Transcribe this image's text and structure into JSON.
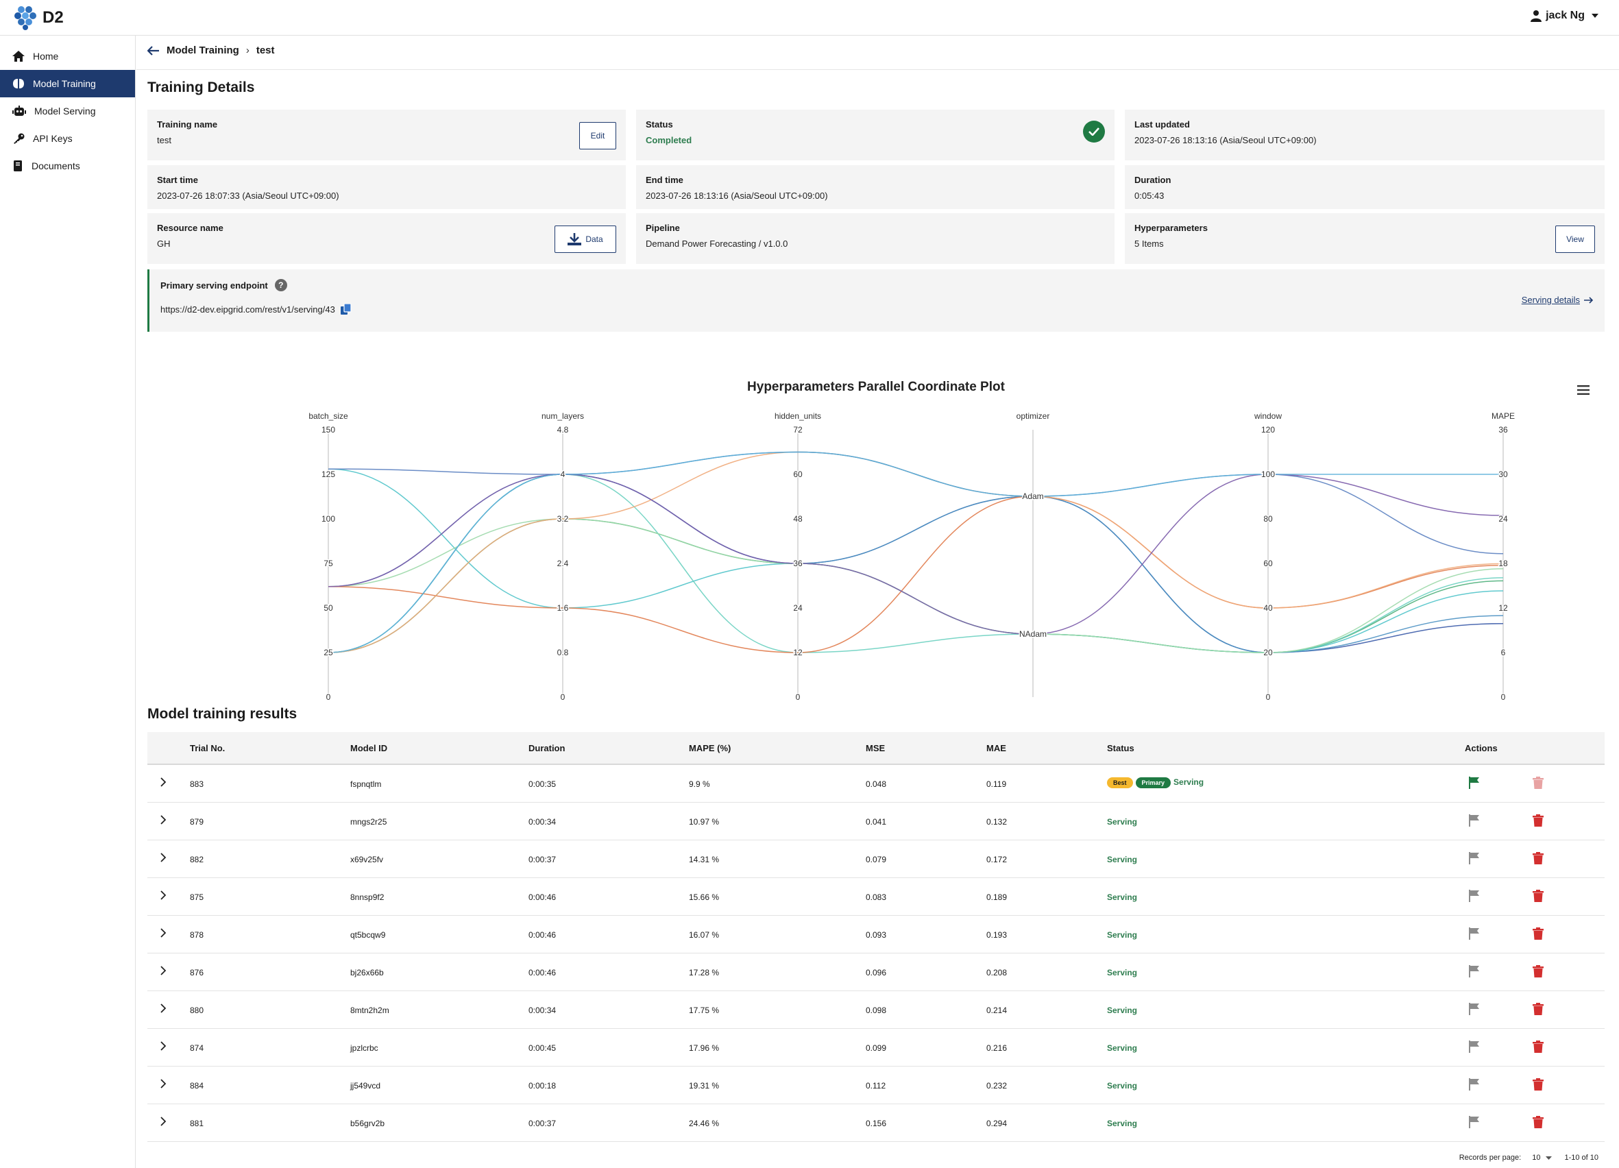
{
  "app": {
    "name": "D2",
    "user": "jack Ng"
  },
  "sidebar": {
    "items": [
      {
        "label": "Home",
        "icon": "home-icon",
        "active": false
      },
      {
        "label": "Model Training",
        "icon": "brain-icon",
        "active": true
      },
      {
        "label": "Model Serving",
        "icon": "robot-icon",
        "active": false
      },
      {
        "label": "API Keys",
        "icon": "key-icon",
        "active": false
      },
      {
        "label": "Documents",
        "icon": "book-icon",
        "active": false
      }
    ]
  },
  "breadcrumb": {
    "parent": "Model Training",
    "current": "test"
  },
  "details": {
    "title": "Training Details",
    "training_name": {
      "label": "Training name",
      "value": "test",
      "button": "Edit"
    },
    "status": {
      "label": "Status",
      "value": "Completed"
    },
    "last_updated": {
      "label": "Last updated",
      "value": "2023-07-26 18:13:16 (Asia/Seoul UTC+09:00)"
    },
    "start_time": {
      "label": "Start time",
      "value": "2023-07-26 18:07:33 (Asia/Seoul UTC+09:00)"
    },
    "end_time": {
      "label": "End time",
      "value": "2023-07-26 18:13:16 (Asia/Seoul UTC+09:00)"
    },
    "duration": {
      "label": "Duration",
      "value": "0:05:43"
    },
    "resource": {
      "label": "Resource name",
      "value": "GH",
      "button": "Data"
    },
    "pipeline": {
      "label": "Pipeline",
      "value": "Demand Power Forecasting / v1.0.0"
    },
    "hyperparameters": {
      "label": "Hyperparameters",
      "value": "5 Items",
      "button": "View"
    }
  },
  "endpoint": {
    "label": "Primary serving endpoint",
    "help": "?",
    "url": "https://d2-dev.eipgrid.com/rest/v1/serving/43",
    "details_link": "Serving details"
  },
  "chart_data": {
    "type": "parallel_coordinates",
    "title": "Hyperparameters Parallel Coordinate Plot",
    "axes": [
      {
        "name": "batch_size",
        "range": [
          0,
          150
        ],
        "ticks": [
          "150",
          "125",
          "100",
          "75",
          "50",
          "25",
          "0"
        ]
      },
      {
        "name": "num_layers",
        "range": [
          0,
          4.8
        ],
        "ticks": [
          "4.8",
          "4",
          "3.2",
          "2.4",
          "1.6",
          "0.8",
          "0"
        ]
      },
      {
        "name": "hidden_units",
        "range": [
          0,
          72
        ],
        "ticks": [
          "72",
          "60",
          "48",
          "36",
          "24",
          "12",
          "0"
        ]
      },
      {
        "name": "optimizer",
        "categories": [
          "NAdam",
          "Adam"
        ]
      },
      {
        "name": "window",
        "range": [
          0,
          120
        ],
        "ticks": [
          "120",
          "100",
          "80",
          "60",
          "40",
          "20",
          "0"
        ]
      },
      {
        "name": "MAPE",
        "range": [
          0,
          36
        ],
        "ticks": [
          "36",
          "30",
          "24",
          "18",
          "12",
          "6",
          "0"
        ]
      }
    ],
    "lines": [
      {
        "values": [
          25,
          4,
          36,
          "Adam",
          20,
          9.9
        ],
        "color": "#3b5ba9"
      },
      {
        "values": [
          62,
          4,
          36,
          "Adam",
          20,
          10.97
        ],
        "color": "#4a90c2"
      },
      {
        "values": [
          128,
          1.6,
          36,
          "NAdam",
          20,
          14.31
        ],
        "color": "#4fc3c9"
      },
      {
        "values": [
          25,
          3.2,
          36,
          "NAdam",
          20,
          15.66
        ],
        "color": "#4caf7a"
      },
      {
        "values": [
          25,
          4,
          12,
          "NAdam",
          20,
          16.07
        ],
        "color": "#6ad0c0"
      },
      {
        "values": [
          62,
          3.2,
          36,
          "NAdam",
          20,
          17.28
        ],
        "color": "#9bd8a8"
      },
      {
        "values": [
          62,
          1.6,
          12,
          "Adam",
          40,
          17.75
        ],
        "color": "#e07a4a"
      },
      {
        "values": [
          25,
          3.2,
          66,
          "Adam",
          40,
          17.96
        ],
        "color": "#f0a878"
      },
      {
        "values": [
          128,
          4,
          66,
          "Adam",
          100,
          19.31
        ],
        "color": "#5a7fc0"
      },
      {
        "values": [
          62,
          4,
          36,
          "NAdam",
          100,
          24.46
        ],
        "color": "#7a5aa8"
      },
      {
        "values": [
          25,
          4,
          66,
          "Adam",
          100,
          30
        ],
        "color": "#5bb0d8"
      }
    ]
  },
  "results": {
    "title": "Model training results",
    "columns": [
      "Trial No.",
      "Model ID",
      "Duration",
      "MAPE (%)",
      "MSE",
      "MAE",
      "Status",
      "Actions"
    ],
    "badges": {
      "best": "Best",
      "primary": "Primary"
    },
    "rows": [
      {
        "trial": "883",
        "model": "fspnqtlm",
        "duration": "0:00:35",
        "mape": "9.9 %",
        "mse": "0.048",
        "mae": "0.119",
        "status": "Serving",
        "best": true,
        "primary": true
      },
      {
        "trial": "879",
        "model": "mngs2r25",
        "duration": "0:00:34",
        "mape": "10.97 %",
        "mse": "0.041",
        "mae": "0.132",
        "status": "Serving"
      },
      {
        "trial": "882",
        "model": "x69v25fv",
        "duration": "0:00:37",
        "mape": "14.31 %",
        "mse": "0.079",
        "mae": "0.172",
        "status": "Serving"
      },
      {
        "trial": "875",
        "model": "8nnsp9f2",
        "duration": "0:00:46",
        "mape": "15.66 %",
        "mse": "0.083",
        "mae": "0.189",
        "status": "Serving"
      },
      {
        "trial": "878",
        "model": "qt5bcqw9",
        "duration": "0:00:46",
        "mape": "16.07 %",
        "mse": "0.093",
        "mae": "0.193",
        "status": "Serving"
      },
      {
        "trial": "876",
        "model": "bj26x66b",
        "duration": "0:00:46",
        "mape": "17.28 %",
        "mse": "0.096",
        "mae": "0.208",
        "status": "Serving"
      },
      {
        "trial": "880",
        "model": "8mtn2h2m",
        "duration": "0:00:34",
        "mape": "17.75 %",
        "mse": "0.098",
        "mae": "0.214",
        "status": "Serving"
      },
      {
        "trial": "874",
        "model": "jpzlcrbc",
        "duration": "0:00:45",
        "mape": "17.96 %",
        "mse": "0.099",
        "mae": "0.216",
        "status": "Serving"
      },
      {
        "trial": "884",
        "model": "jj549vcd",
        "duration": "0:00:18",
        "mape": "19.31 %",
        "mse": "0.112",
        "mae": "0.232",
        "status": "Serving"
      },
      {
        "trial": "881",
        "model": "b56grv2b",
        "duration": "0:00:37",
        "mape": "24.46 %",
        "mse": "0.156",
        "mae": "0.294",
        "status": "Serving"
      }
    ],
    "pager": {
      "label": "Records per page:",
      "per_page": "10",
      "range": "1-10 of 10"
    }
  },
  "colors": {
    "primary": "#1e3a6e",
    "success": "#1f7a43",
    "danger": "#d32f2f",
    "warning": "#f5b82e"
  }
}
